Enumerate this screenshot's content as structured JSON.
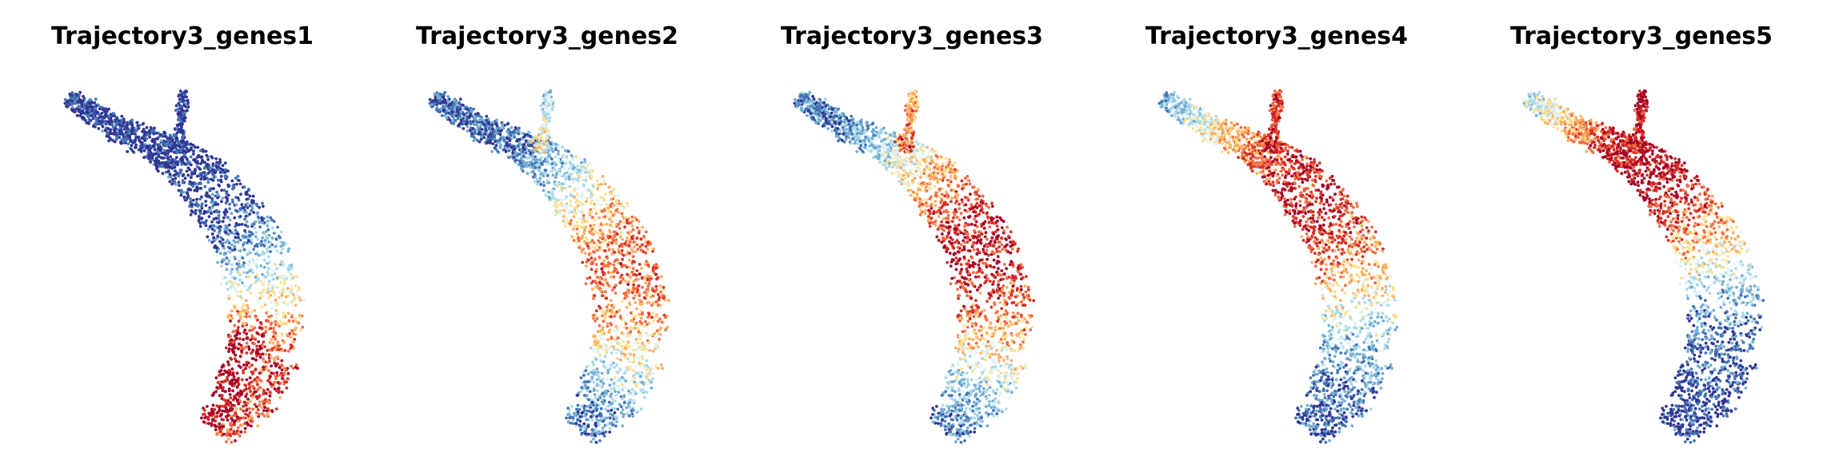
{
  "chart_data": {
    "type": "scatter",
    "panels": [
      {
        "title": "Trajectory3_genes1",
        "pattern": "late"
      },
      {
        "title": "Trajectory3_genes2",
        "pattern": "mid"
      },
      {
        "title": "Trajectory3_genes3",
        "pattern": "mid-late"
      },
      {
        "title": "Trajectory3_genes4",
        "pattern": "mid-early"
      },
      {
        "title": "Trajectory3_genes5",
        "pattern": "early"
      }
    ],
    "colormap": [
      "#313695",
      "#4575b4",
      "#74add1",
      "#abd9e9",
      "#e0f3f8",
      "#fee090",
      "#fdae61",
      "#f46d43",
      "#d73027",
      "#a50026"
    ],
    "axes_visible": false,
    "grid": false,
    "legend": "none"
  }
}
